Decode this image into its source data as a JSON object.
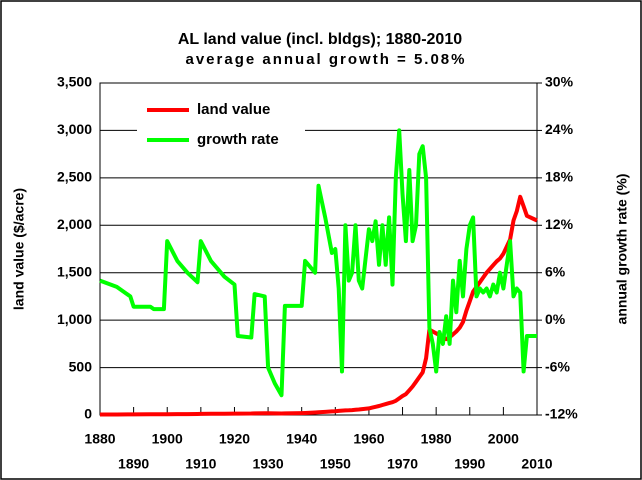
{
  "chart_data": {
    "type": "line",
    "title": "AL land value (incl. bldgs); 1880-2010",
    "subtitle": "average annual growth = 5.08%",
    "y_label": "land value ($/acre)",
    "y2_label": "annual growth rate (%)",
    "x": [
      1880,
      1885,
      1889,
      1890,
      1895,
      1896,
      1899,
      1900,
      1903,
      1906,
      1909,
      1910,
      1913,
      1917,
      1920,
      1921,
      1925,
      1926,
      1929,
      1930,
      1932,
      1934,
      1935,
      1940,
      1941,
      1944,
      1945,
      1947,
      1949,
      1950,
      1951,
      1952,
      1953,
      1954,
      1955,
      1956,
      1957,
      1958,
      1960,
      1961,
      1962,
      1963,
      1964,
      1965,
      1966,
      1967,
      1968,
      1969,
      1970,
      1971,
      1972,
      1973,
      1974,
      1975,
      1976,
      1977,
      1978,
      1979,
      1980,
      1981,
      1982,
      1983,
      1984,
      1985,
      1986,
      1987,
      1988,
      1989,
      1990,
      1991,
      1992,
      1993,
      1994,
      1995,
      1996,
      1997,
      1998,
      1999,
      2000,
      2002,
      2003,
      2004,
      2005,
      2006,
      2007,
      2010
    ],
    "series": [
      {
        "name": "land value",
        "color": "#ff0000",
        "axis": "y",
        "values": [
          5,
          5,
          6,
          6,
          7,
          7,
          8,
          8,
          9,
          10,
          11,
          12,
          13,
          14,
          15,
          15,
          16,
          17,
          18,
          18,
          17,
          16,
          17,
          20,
          21,
          26,
          28,
          33,
          38,
          40,
          43,
          46,
          48,
          50,
          52,
          55,
          58,
          62,
          70,
          78,
          86,
          95,
          105,
          115,
          125,
          135,
          150,
          175,
          200,
          220,
          260,
          300,
          350,
          400,
          450,
          600,
          900,
          880,
          860,
          840,
          820,
          800,
          820,
          850,
          880,
          920,
          980,
          1100,
          1200,
          1300,
          1350,
          1400,
          1450,
          1500,
          1540,
          1580,
          1620,
          1650,
          1700,
          1850,
          2050,
          2150,
          2300,
          2200,
          2100,
          2050
        ]
      },
      {
        "name": "growth rate",
        "color": "#00ff00",
        "axis": "y2",
        "values": [
          5.0,
          4.2,
          3.0,
          1.7,
          1.7,
          1.4,
          1.4,
          10.0,
          7.5,
          6.0,
          4.8,
          10.0,
          7.5,
          5.5,
          4.5,
          -2.0,
          -2.2,
          3.3,
          3.0,
          -6.0,
          -8.0,
          -9.5,
          1.8,
          1.8,
          7.5,
          6.0,
          17.0,
          13.0,
          8.5,
          9.0,
          4.0,
          -6.5,
          12.0,
          5.0,
          6.0,
          12.0,
          5.0,
          4.0,
          11.5,
          10.0,
          12.5,
          7.0,
          12.0,
          7.0,
          13.0,
          4.5,
          18.0,
          24.0,
          16.0,
          10.0,
          19.0,
          10.0,
          12.0,
          21.0,
          22.0,
          18.0,
          -1.0,
          -3.0,
          -6.5,
          -1.5,
          -3.0,
          0.5,
          -3.0,
          5.0,
          1.0,
          7.5,
          3.0,
          9.0,
          12.0,
          13.0,
          3.0,
          4.0,
          3.5,
          4.0,
          3.0,
          4.5,
          3.5,
          6.0,
          4.0,
          10.0,
          3.0,
          4.0,
          3.5,
          -6.5,
          -2.0,
          -2.0
        ]
      }
    ],
    "xlim": [
      1880,
      2010
    ],
    "xticks": [
      1880,
      1890,
      1900,
      1910,
      1920,
      1930,
      1940,
      1950,
      1960,
      1970,
      1980,
      1990,
      2000,
      2010
    ],
    "ylim": [
      0,
      3500
    ],
    "yticks": [
      0,
      500,
      {
        "value": 1000,
        "label": "1,000"
      },
      {
        "value": 1500,
        "label": "1,500"
      },
      {
        "value": 2000,
        "label": "2,000"
      },
      {
        "value": 2500,
        "label": "2,500"
      },
      {
        "value": 3000,
        "label": "3,000"
      },
      {
        "value": 3500,
        "label": "3,500"
      }
    ],
    "y2lim": [
      -12,
      30
    ],
    "y2ticks": [
      {
        "value": -12,
        "label": "-12%"
      },
      {
        "value": -6,
        "label": "-6%"
      },
      {
        "value": 0,
        "label": "0%"
      },
      {
        "value": 6,
        "label": "6%"
      },
      {
        "value": 12,
        "label": "12%"
      },
      {
        "value": 18,
        "label": "18%"
      },
      {
        "value": 24,
        "label": "24%"
      },
      {
        "value": 30,
        "label": "30%"
      }
    ],
    "grid": true,
    "legend": "top-left"
  }
}
